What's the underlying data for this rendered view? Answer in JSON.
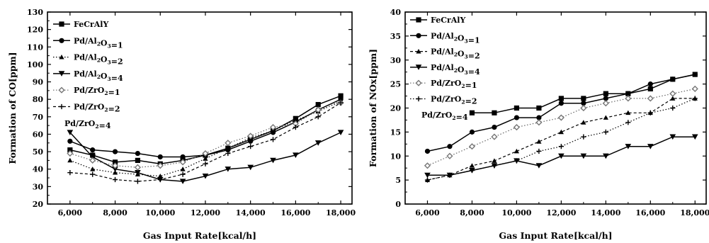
{
  "chart_data": [
    {
      "type": "line",
      "xlabel": "Gas Input Rate[kcal/h]",
      "ylabel": "Formation of CO[ppm]",
      "xlim": [
        5000,
        18500
      ],
      "ylim": [
        20,
        130
      ],
      "xticks": [
        6000,
        8000,
        10000,
        12000,
        14000,
        16000,
        18000
      ],
      "xtick_labels": [
        "6,000",
        "8,000",
        "10,000",
        "12,000",
        "14,000",
        "16,000",
        "18,000"
      ],
      "yticks": [
        20,
        30,
        40,
        50,
        60,
        70,
        80,
        90,
        100,
        110,
        120,
        130
      ],
      "legend_position": "top-left",
      "grid": false,
      "series": [
        {
          "name": "FeCrAlY",
          "marker": "square",
          "dash": "solid",
          "x": [
            6000,
            7000,
            8000,
            9000,
            10000,
            11000,
            12000,
            13000,
            14000,
            15000,
            16000,
            17000,
            18000
          ],
          "y": [
            51,
            48,
            44,
            45,
            43,
            45,
            48,
            52,
            57,
            62,
            69,
            77,
            82
          ]
        },
        {
          "name": "Pd/Al₂O₃=1",
          "marker": "circle",
          "dash": "solid",
          "x": [
            6000,
            7000,
            8000,
            9000,
            10000,
            11000,
            12000,
            13000,
            14000,
            15000,
            16000,
            17000,
            18000
          ],
          "y": [
            56,
            51,
            50,
            49,
            47,
            47,
            48,
            51,
            56,
            61,
            67,
            74,
            80
          ]
        },
        {
          "name": "Pd/Al₂O₃=2",
          "marker": "triangle-up",
          "dash": "dotted",
          "x": [
            6000,
            7000,
            8000,
            9000,
            10000,
            11000,
            12000,
            13000,
            14000,
            15000,
            16000,
            17000,
            18000
          ],
          "y": [
            45,
            40,
            38,
            37,
            36,
            40,
            46,
            52,
            58,
            62,
            68,
            73,
            79
          ]
        },
        {
          "name": "Pd/Al₂O₃=4",
          "marker": "triangle-down",
          "dash": "solid",
          "x": [
            6000,
            7000,
            8000,
            9000,
            10000,
            11000,
            12000,
            13000,
            14000,
            15000,
            16000,
            17000,
            18000
          ],
          "y": [
            61,
            47,
            40,
            38,
            34,
            33,
            36,
            40,
            41,
            45,
            48,
            55,
            61
          ]
        },
        {
          "name": "Pd/ZrO₂=1",
          "marker": "diamond",
          "dash": "dotted",
          "x": [
            6000,
            7000,
            8000,
            9000,
            10000,
            11000,
            12000,
            13000,
            14000,
            15000,
            16000,
            17000,
            18000
          ],
          "y": [
            49,
            45,
            42,
            41,
            42,
            44,
            49,
            55,
            59,
            64,
            66,
            74,
            78
          ]
        },
        {
          "name": "Pd/ZrO₂=2",
          "marker": "plus",
          "dash": "dashed",
          "x": [
            6000,
            7000,
            8000,
            9000,
            10000,
            11000,
            12000,
            13000,
            14000,
            15000,
            16000,
            17000,
            18000
          ],
          "y": [
            38,
            37,
            34,
            33,
            34,
            37,
            43,
            49,
            53,
            57,
            64,
            70,
            78
          ]
        }
      ],
      "extra_legend_entries": [
        "Pd/ZrO₂=4"
      ]
    },
    {
      "type": "line",
      "xlabel": "Gas Input Rate[kcal/h]",
      "ylabel": "Formation of NOx[ppm]",
      "xlim": [
        5000,
        18500
      ],
      "ylim": [
        0,
        40
      ],
      "xticks": [
        6000,
        8000,
        10000,
        12000,
        14000,
        16000,
        18000
      ],
      "xtick_labels": [
        "6,000",
        "8,000",
        "10,000",
        "12,000",
        "14,000",
        "16,000",
        "18,000"
      ],
      "yticks": [
        0,
        5,
        10,
        15,
        20,
        25,
        30,
        35,
        40
      ],
      "legend_position": "top-left",
      "grid": false,
      "series": [
        {
          "name": "FeCrAlY",
          "marker": "square",
          "dash": "solid",
          "x": [
            8000,
            9000,
            10000,
            11000,
            12000,
            13000,
            14000,
            15000,
            16000,
            17000,
            18000
          ],
          "y": [
            19,
            19,
            20,
            20,
            22,
            22,
            23,
            23,
            24,
            26,
            27
          ]
        },
        {
          "name": "Pd/Al₂O₃=1",
          "marker": "circle",
          "dash": "solid",
          "x": [
            6000,
            7000,
            8000,
            9000,
            10000,
            11000,
            12000,
            13000,
            14000,
            15000,
            16000,
            17000,
            18000
          ],
          "y": [
            11,
            12,
            15,
            16,
            18,
            18,
            21,
            21,
            22,
            23,
            25,
            26,
            27
          ]
        },
        {
          "name": "Pd/Al₂O₃=2",
          "marker": "triangle-up",
          "dash": "dashed",
          "x": [
            6000,
            7000,
            8000,
            9000,
            10000,
            11000,
            12000,
            13000,
            14000,
            15000,
            16000,
            17000,
            18000
          ],
          "y": [
            5,
            6,
            8,
            9,
            11,
            13,
            15,
            17,
            18,
            19,
            19,
            22,
            22
          ]
        },
        {
          "name": "Pd/Al₂O₃=4",
          "marker": "triangle-down",
          "dash": "solid",
          "x": [
            6000,
            7000,
            8000,
            9000,
            10000,
            11000,
            12000,
            13000,
            14000,
            15000,
            16000,
            17000,
            18000
          ],
          "y": [
            6,
            6,
            7,
            8,
            9,
            8,
            10,
            10,
            10,
            12,
            12,
            14,
            14
          ]
        },
        {
          "name": "Pd/ZrO₂=1",
          "marker": "diamond",
          "dash": "dotted",
          "x": [
            6000,
            7000,
            8000,
            9000,
            10000,
            11000,
            12000,
            13000,
            14000,
            15000,
            16000,
            17000,
            18000
          ],
          "y": [
            8,
            10,
            12,
            14,
            16,
            17,
            18,
            20,
            21,
            22,
            22,
            23,
            24
          ]
        },
        {
          "name": "Pd/ZrO₂=2",
          "marker": "plus",
          "dash": "dotted",
          "x": [
            6000,
            7000,
            8000,
            9000,
            10000,
            11000,
            12000,
            13000,
            14000,
            15000,
            16000,
            17000,
            18000
          ],
          "y": [
            5,
            6,
            7,
            8,
            9,
            11,
            12,
            14,
            15,
            17,
            19,
            20,
            22
          ]
        }
      ],
      "extra_legend_entries": [
        "Pd/ZrO₂=4"
      ]
    }
  ]
}
